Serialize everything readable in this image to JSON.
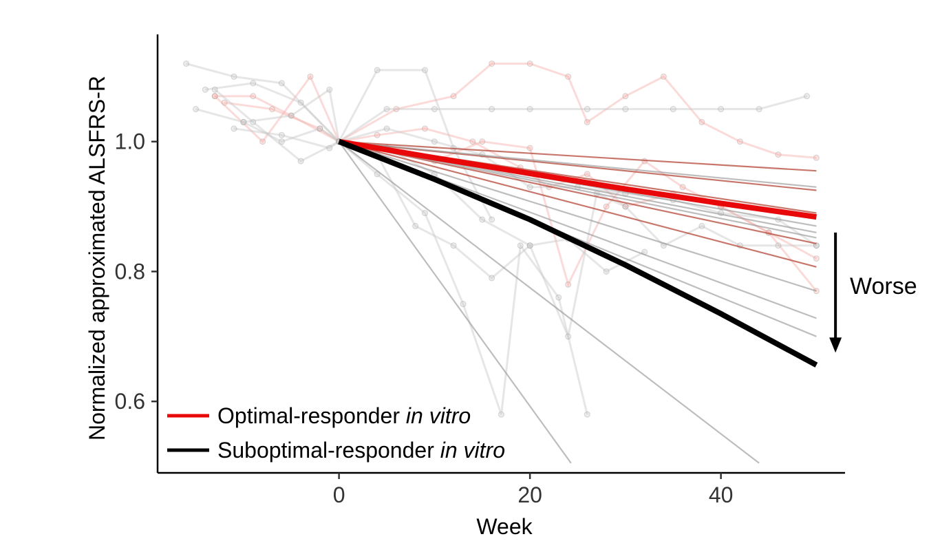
{
  "chart_data": {
    "type": "line",
    "title": "",
    "xlabel": "Week",
    "ylabel": "Normalized approximated ALSFRS-R",
    "xlim": [
      -19,
      53
    ],
    "ylim": [
      0.49,
      1.165
    ],
    "xticks": [
      0,
      20,
      40
    ],
    "yticks": [
      0.6,
      0.8,
      1.0
    ],
    "xtick_labels": [
      "0",
      "20",
      "40"
    ],
    "ytick_labels": [
      "0.6",
      "0.8",
      "1.0"
    ],
    "grid": false,
    "colors": {
      "optimal": "#e8080a",
      "suboptimal": "#000000",
      "optimal_fit": "#b5483a",
      "suboptimal_fit": "#999999",
      "optimal_raw": "#f5b0aa",
      "suboptimal_raw": "#c8c8c8"
    },
    "legend": {
      "position": "bottom-left",
      "entries": [
        {
          "label": "Optimal-responder ",
          "label_italic": "in vitro",
          "color": "#e8080a"
        },
        {
          "label": "Suboptimal-responder ",
          "label_italic": "in vitro",
          "color": "#000000"
        }
      ]
    },
    "annotation": {
      "text": "Worse",
      "arrow_from": 0.86,
      "arrow_to": 0.675,
      "x_week": 52
    },
    "mean_curves": [
      {
        "name": "Optimal-responder in vitro",
        "color": "#e8080a",
        "x": [
          0,
          10,
          20,
          30,
          40,
          50
        ],
        "y": [
          1.0,
          0.975,
          0.951,
          0.927,
          0.905,
          0.884
        ]
      },
      {
        "name": "Suboptimal-responder in vitro",
        "color": "#000000",
        "x": [
          0,
          10,
          20,
          30,
          40,
          50
        ],
        "y": [
          1.0,
          0.942,
          0.88,
          0.81,
          0.735,
          0.656
        ]
      }
    ],
    "fit_lines": [
      {
        "group": "optimal",
        "x": [
          0,
          50
        ],
        "y": [
          1.0,
          0.955
        ]
      },
      {
        "group": "optimal",
        "x": [
          0,
          50
        ],
        "y": [
          1.0,
          0.925
        ]
      },
      {
        "group": "optimal",
        "x": [
          0,
          50
        ],
        "y": [
          1.0,
          0.89
        ]
      },
      {
        "group": "optimal",
        "x": [
          0,
          50
        ],
        "y": [
          1.0,
          0.843
        ]
      },
      {
        "group": "optimal",
        "x": [
          0,
          50
        ],
        "y": [
          1.0,
          0.807
        ]
      },
      {
        "group": "suboptimal",
        "x": [
          0,
          50
        ],
        "y": [
          1.0,
          0.93
        ]
      },
      {
        "group": "suboptimal",
        "x": [
          0,
          50
        ],
        "y": [
          1.0,
          0.87
        ]
      },
      {
        "group": "suboptimal",
        "x": [
          0,
          50
        ],
        "y": [
          1.0,
          0.86
        ]
      },
      {
        "group": "suboptimal",
        "x": [
          0,
          50
        ],
        "y": [
          1.0,
          0.852
        ]
      },
      {
        "group": "suboptimal",
        "x": [
          0,
          50
        ],
        "y": [
          1.0,
          0.77
        ]
      },
      {
        "group": "suboptimal",
        "x": [
          0,
          50
        ],
        "y": [
          1.0,
          0.728
        ]
      },
      {
        "group": "suboptimal",
        "x": [
          0,
          50
        ],
        "y": [
          1.0,
          0.7
        ]
      },
      {
        "group": "suboptimal",
        "x": [
          0,
          24.3
        ],
        "y": [
          1.0,
          0.505
        ]
      },
      {
        "group": "suboptimal",
        "x": [
          0,
          44
        ],
        "y": [
          1.0,
          0.505
        ]
      }
    ],
    "raw_series": [
      {
        "group": "optimal",
        "x": [
          -13,
          -8,
          -3,
          0,
          6,
          12,
          16,
          20,
          24,
          26,
          30,
          34,
          38,
          42,
          46,
          50
        ],
        "y": [
          1.07,
          1.0,
          1.1,
          1.0,
          1.05,
          1.07,
          1.12,
          1.12,
          1.1,
          1.03,
          1.07,
          1.1,
          1.03,
          1.0,
          0.98,
          0.975
        ]
      },
      {
        "group": "optimal",
        "x": [
          -13,
          -9,
          -5,
          0,
          5,
          10,
          15,
          20,
          24,
          28,
          32,
          36,
          40,
          45,
          50
        ],
        "y": [
          1.07,
          1.07,
          1.04,
          1.0,
          0.99,
          0.97,
          1.0,
          0.99,
          0.78,
          0.9,
          0.97,
          0.93,
          0.9,
          0.86,
          0.77
        ]
      },
      {
        "group": "optimal",
        "x": [
          -12,
          -7,
          -2,
          0,
          4,
          9,
          14,
          19,
          22,
          26,
          30,
          35,
          40,
          45,
          50
        ],
        "y": [
          1.06,
          1.05,
          1.02,
          1.0,
          1.01,
          1.02,
          1.0,
          0.96,
          0.93,
          0.95,
          0.9,
          0.92,
          0.9,
          0.86,
          0.82
        ]
      },
      {
        "group": "suboptimal",
        "x": [
          -16,
          -11,
          -6,
          0,
          5,
          10,
          16,
          20,
          26,
          30,
          35,
          40,
          44,
          49
        ],
        "y": [
          1.12,
          1.1,
          1.09,
          1.0,
          1.05,
          1.05,
          1.05,
          1.05,
          1.05,
          1.05,
          1.05,
          1.05,
          1.05,
          1.07
        ]
      },
      {
        "group": "suboptimal",
        "x": [
          -14,
          -9,
          -4,
          0,
          4,
          9,
          12,
          16
        ],
        "y": [
          1.08,
          1.09,
          1.06,
          1.0,
          1.11,
          1.11,
          0.99,
          0.88
        ]
      },
      {
        "group": "suboptimal",
        "x": [
          -15,
          -10,
          -5,
          -1,
          0,
          4,
          9,
          13,
          17,
          19,
          23,
          26
        ],
        "y": [
          1.05,
          1.03,
          1.04,
          1.08,
          1.0,
          0.95,
          0.89,
          0.75,
          0.58,
          0.84,
          0.76,
          0.58
        ]
      },
      {
        "group": "suboptimal",
        "x": [
          -13,
          -9,
          -4,
          0,
          5,
          10,
          15,
          20,
          24,
          27,
          30,
          34,
          38,
          42,
          46,
          50
        ],
        "y": [
          1.08,
          1.03,
          0.97,
          1.0,
          0.99,
          0.95,
          0.88,
          0.84,
          0.7,
          0.92,
          0.9,
          0.84,
          0.87,
          0.84,
          0.84,
          0.84
        ]
      },
      {
        "group": "suboptimal",
        "x": [
          -10,
          -6,
          -2,
          0,
          4,
          8,
          12,
          16,
          20,
          24,
          28,
          32
        ],
        "y": [
          1.03,
          1.0,
          1.02,
          1.0,
          0.98,
          0.87,
          0.84,
          0.79,
          0.84,
          0.85,
          0.8,
          0.83
        ]
      },
      {
        "group": "suboptimal",
        "x": [
          -11,
          -6,
          -1,
          0,
          5,
          10,
          15,
          20,
          25,
          30,
          35,
          40,
          46,
          50
        ],
        "y": [
          1.02,
          1.01,
          0.99,
          1.0,
          1.02,
          1.0,
          0.98,
          0.93,
          0.93,
          0.92,
          0.91,
          0.89,
          0.88,
          0.84
        ]
      }
    ]
  }
}
